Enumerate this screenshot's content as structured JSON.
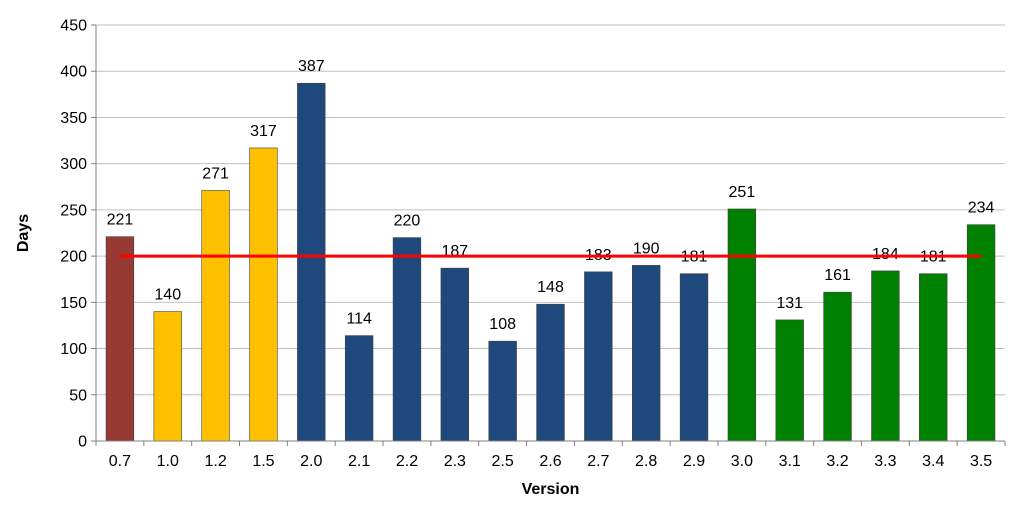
{
  "chart_data": {
    "type": "bar",
    "title": "",
    "xlabel": "Version",
    "ylabel": "Days",
    "ylim": [
      0,
      450
    ],
    "yticks": [
      0,
      50,
      100,
      150,
      200,
      250,
      300,
      350,
      400,
      450
    ],
    "grid": "horizontal",
    "legend": "none",
    "categories": [
      "0.7",
      "1.0",
      "1.2",
      "1.5",
      "2.0",
      "2.1",
      "2.2",
      "2.3",
      "2.5",
      "2.6",
      "2.7",
      "2.8",
      "2.9",
      "3.0",
      "3.1",
      "3.2",
      "3.3",
      "3.4",
      "3.5"
    ],
    "values": [
      221,
      140,
      271,
      317,
      387,
      114,
      220,
      187,
      108,
      148,
      183,
      190,
      181,
      251,
      131,
      161,
      184,
      181,
      234
    ],
    "bar_colors": [
      "#983a34",
      "#ffc000",
      "#ffc000",
      "#ffc000",
      "#1f497d",
      "#1f497d",
      "#1f497d",
      "#1f497d",
      "#1f497d",
      "#1f497d",
      "#1f497d",
      "#1f497d",
      "#1f497d",
      "#008000",
      "#008000",
      "#008000",
      "#008000",
      "#008000",
      "#008000"
    ],
    "reference_line": {
      "value": 200,
      "color": "#ff0000"
    }
  }
}
